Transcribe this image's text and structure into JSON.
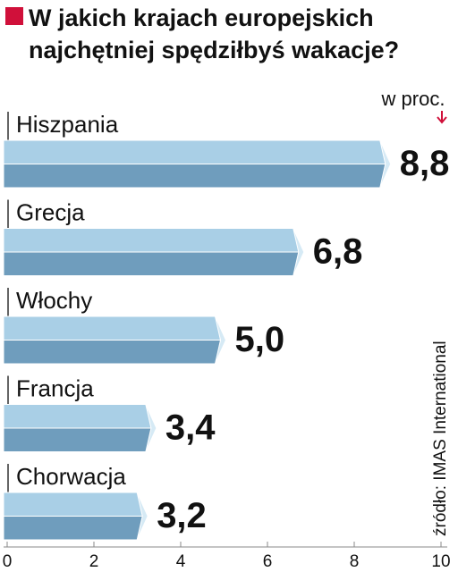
{
  "chart_data": {
    "type": "hbar",
    "title": "W jakich krajach europejskich najchętniej spędziłbyś wakacje?",
    "unit_note": "w proc.",
    "source": "źródło: IMAS International",
    "categories": [
      "Hiszpania",
      "Grecja",
      "Włochy",
      "Francja",
      "Chorwacja"
    ],
    "values": [
      8.8,
      6.8,
      5.0,
      3.4,
      3.2
    ],
    "value_labels": [
      "8,8",
      "6,8",
      "5,0",
      "3,4",
      "3,2"
    ],
    "color": "#6f9dbd",
    "highlight_color": "#d0103a",
    "xlim": [
      0,
      10
    ],
    "xticks": [
      0,
      2,
      4,
      6,
      8,
      10
    ]
  }
}
